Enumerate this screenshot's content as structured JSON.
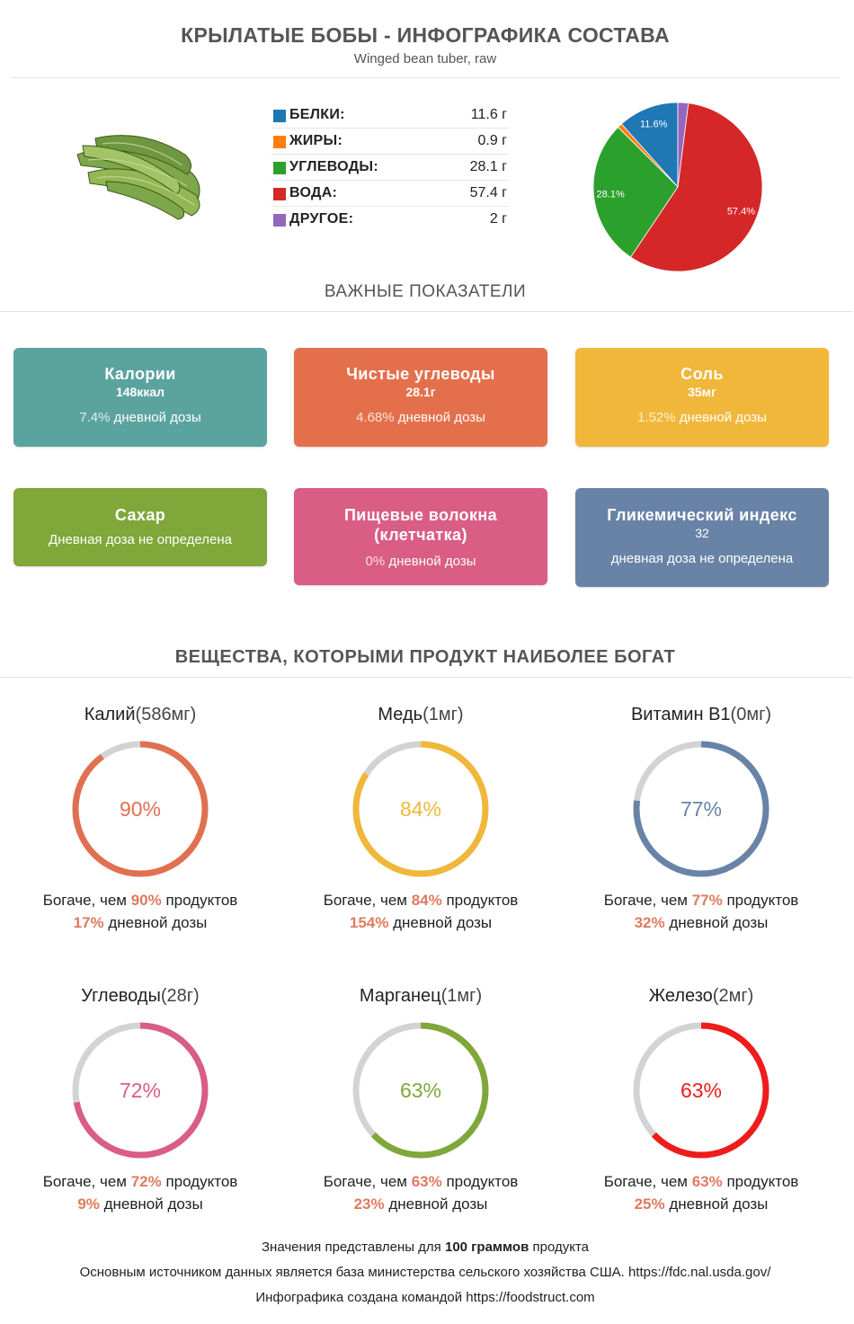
{
  "header": {
    "title": "КРЫЛАТЫЕ БОБЫ - ИНФОГРАФИКА СОСТАВА",
    "subtitle": "Winged bean tuber, raw"
  },
  "macros": [
    {
      "label": "БЕЛКИ:",
      "value": "11.6 г",
      "color": "#1f77b4"
    },
    {
      "label": "ЖИРЫ:",
      "value": "0.9 г",
      "color": "#ff7f0e"
    },
    {
      "label": "УГЛЕВОДЫ:",
      "value": "28.1 г",
      "color": "#2ca02c"
    },
    {
      "label": "ВОДА:",
      "value": "57.4 г",
      "color": "#d62728"
    },
    {
      "label": "ДРУГОЕ:",
      "value": "2 г",
      "color": "#9467bd"
    }
  ],
  "chart_data": {
    "type": "pie",
    "slices": [
      {
        "name": "БЕЛКИ",
        "value": 11.6,
        "label": "11.6%",
        "color": "#1f77b4"
      },
      {
        "name": "ЖИРЫ",
        "value": 0.9,
        "label": "",
        "color": "#ff7f0e"
      },
      {
        "name": "УГЛЕВОДЫ",
        "value": 28.1,
        "label": "28.1%",
        "color": "#2ca02c"
      },
      {
        "name": "ВОДА",
        "value": 57.4,
        "label": "57.4%",
        "color": "#d62728"
      },
      {
        "name": "ДРУГОЕ",
        "value": 2,
        "label": "",
        "color": "#9467bd"
      }
    ]
  },
  "key_section": {
    "heading": "ВАЖНЫЕ ПОКАЗАТЕЛИ"
  },
  "cards": [
    {
      "title": "Калории",
      "value": "148ккал",
      "dv_pct": "7.4%",
      "dv_text": " дневной дозы",
      "color": "#5ba39f"
    },
    {
      "title": "Чистые углеводы",
      "value": "28.1г",
      "dv_pct": "4.68%",
      "dv_text": " дневной дозы",
      "color": "#e4704b"
    },
    {
      "title": "Соль",
      "value": "35мг",
      "dv_pct": "1.52%",
      "dv_text": " дневной дозы",
      "color": "#f0b73a"
    },
    {
      "title": "Сахар",
      "value": "",
      "dv_pct": "",
      "dv_text": "Дневная доза не определена",
      "color": "#7fa73a"
    },
    {
      "title": "Пищевые волокна (клетчатка)",
      "value": "",
      "dv_pct": "0%",
      "dv_text": " дневной дозы",
      "color": "#d95d84"
    },
    {
      "title": "Гликемический индекс",
      "value": "32",
      "dv_pct": "",
      "dv_text": "дневная доза не определена",
      "color": "#6883a6"
    }
  ],
  "rich_section": {
    "heading": "ВЕЩЕСТВА, КОТОРЫМИ ПРОДУКТ НАИБОЛЕЕ БОГАТ"
  },
  "rich_items": [
    {
      "name": "Калий",
      "amount": "(586мг)",
      "percent": 90,
      "percent_label": "90%",
      "color": "#e07050",
      "richer_pre": "Богаче, чем ",
      "richer_pct": "90%",
      "richer_post": " продуктов",
      "dv_pct": "17%",
      "dv_text": " дневной дозы"
    },
    {
      "name": "Медь",
      "amount": "(1мг)",
      "percent": 84,
      "percent_label": "84%",
      "color": "#f0b73a",
      "richer_pre": "Богаче, чем ",
      "richer_pct": "84%",
      "richer_post": " продуктов",
      "dv_pct": "154%",
      "dv_text": " дневной дозы"
    },
    {
      "name": "Витамин B1",
      "amount": "(0мг)",
      "percent": 77,
      "percent_label": "77%",
      "color": "#6883a6",
      "richer_pre": "Богаче, чем ",
      "richer_pct": "77%",
      "richer_post": " продуктов",
      "dv_pct": "32%",
      "dv_text": " дневной дозы"
    },
    {
      "name": "Углеводы",
      "amount": "(28г)",
      "percent": 72,
      "percent_label": "72%",
      "color": "#d95d84",
      "richer_pre": "Богаче, чем ",
      "richer_pct": "72%",
      "richer_post": " продуктов",
      "dv_pct": "9%",
      "dv_text": " дневной дозы"
    },
    {
      "name": "Марганец",
      "amount": "(1мг)",
      "percent": 63,
      "percent_label": "63%",
      "color": "#7fa73a",
      "richer_pre": "Богаче, чем ",
      "richer_pct": "63%",
      "richer_post": " продуктов",
      "dv_pct": "23%",
      "dv_text": " дневной дозы"
    },
    {
      "name": "Железо",
      "amount": "(2мг)",
      "percent": 63,
      "percent_label": "63%",
      "color": "#ee1c1c",
      "richer_pre": "Богаче, чем ",
      "richer_pct": "63%",
      "richer_post": " продуктов",
      "dv_pct": "25%",
      "dv_text": " дневной дозы"
    }
  ],
  "ring_track_color": "#d3d3d3",
  "footer": {
    "line1_pre": "Значения представлены для ",
    "line1_bold": "100 граммов",
    "line1_post": " продукта",
    "line2": "Основным источником данных является база министерства сельского хозяйства США. https://fdc.nal.usda.gov/",
    "line3": "Инфографика создана командой https://foodstruct.com"
  }
}
